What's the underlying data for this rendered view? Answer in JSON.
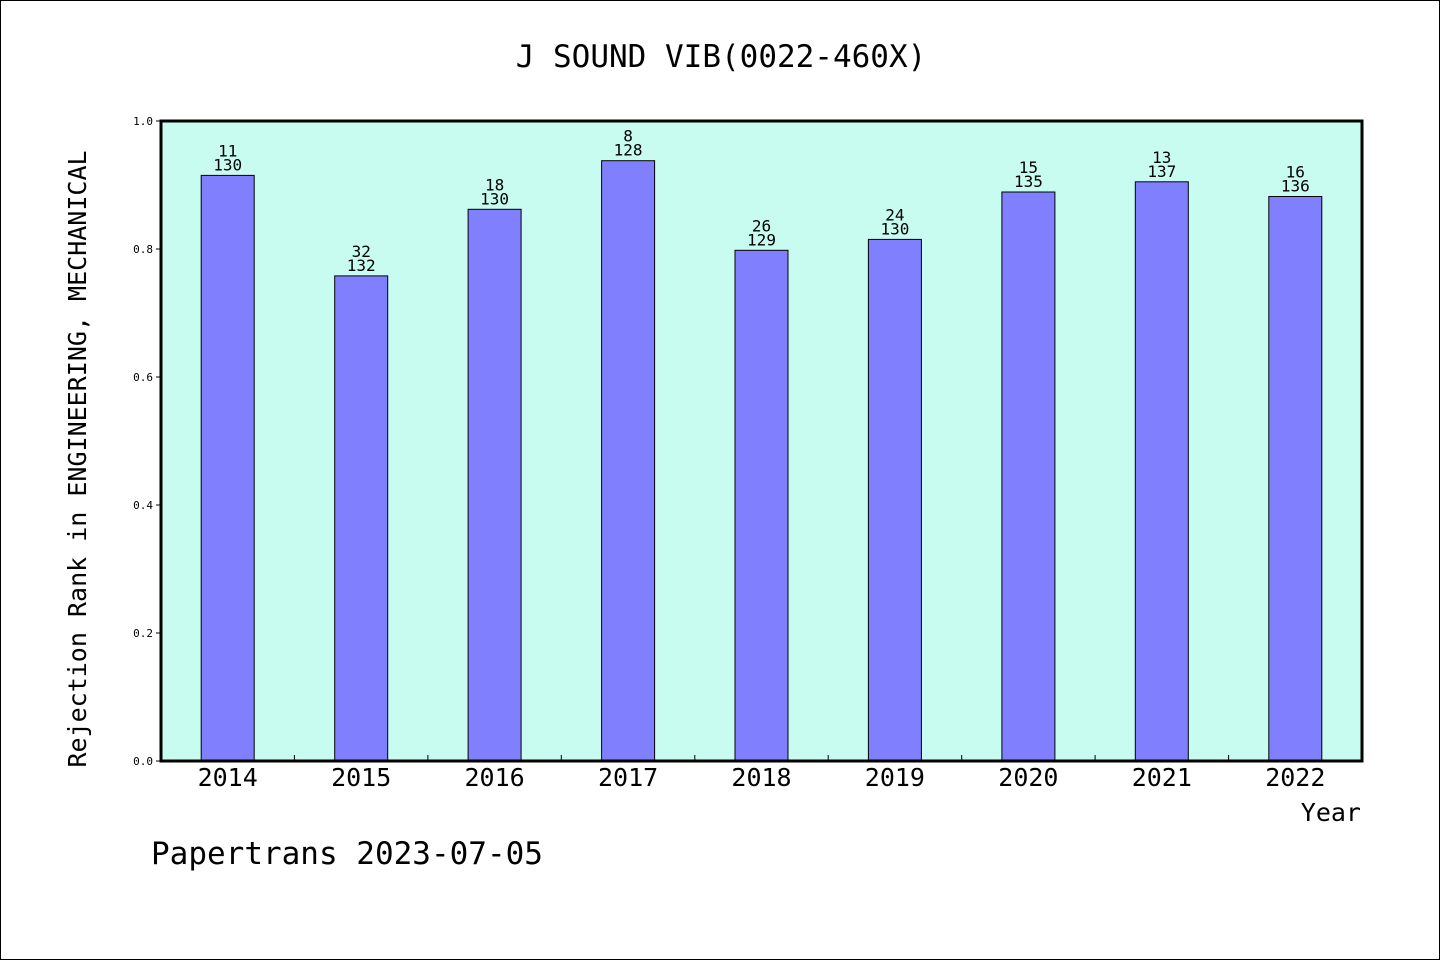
{
  "chart_data": {
    "type": "bar",
    "title": "J SOUND VIB(0022-460X)",
    "xlabel": "Year",
    "ylabel": "Rejection Rank in ENGINEERING, MECHANICAL",
    "ylim": [
      0,
      1.0
    ],
    "yticks": [
      "0.0",
      "0.2",
      "0.4",
      "0.6",
      "0.8",
      "1.0"
    ],
    "grid": false,
    "categories": [
      "2014",
      "2015",
      "2016",
      "2017",
      "2018",
      "2019",
      "2020",
      "2021",
      "2022"
    ],
    "values": [
      0.915,
      0.758,
      0.862,
      0.938,
      0.798,
      0.815,
      0.889,
      0.905,
      0.882
    ],
    "ranks": [
      "11",
      "32",
      "18",
      "8",
      "26",
      "24",
      "15",
      "13",
      "16"
    ],
    "totals": [
      "130",
      "132",
      "130",
      "128",
      "129",
      "130",
      "135",
      "137",
      "136"
    ],
    "colors": {
      "bar": "#8080ff",
      "plot_background": "#c8fcf0",
      "axis": "#000000"
    }
  },
  "footer": "Papertrans 2023-07-05"
}
